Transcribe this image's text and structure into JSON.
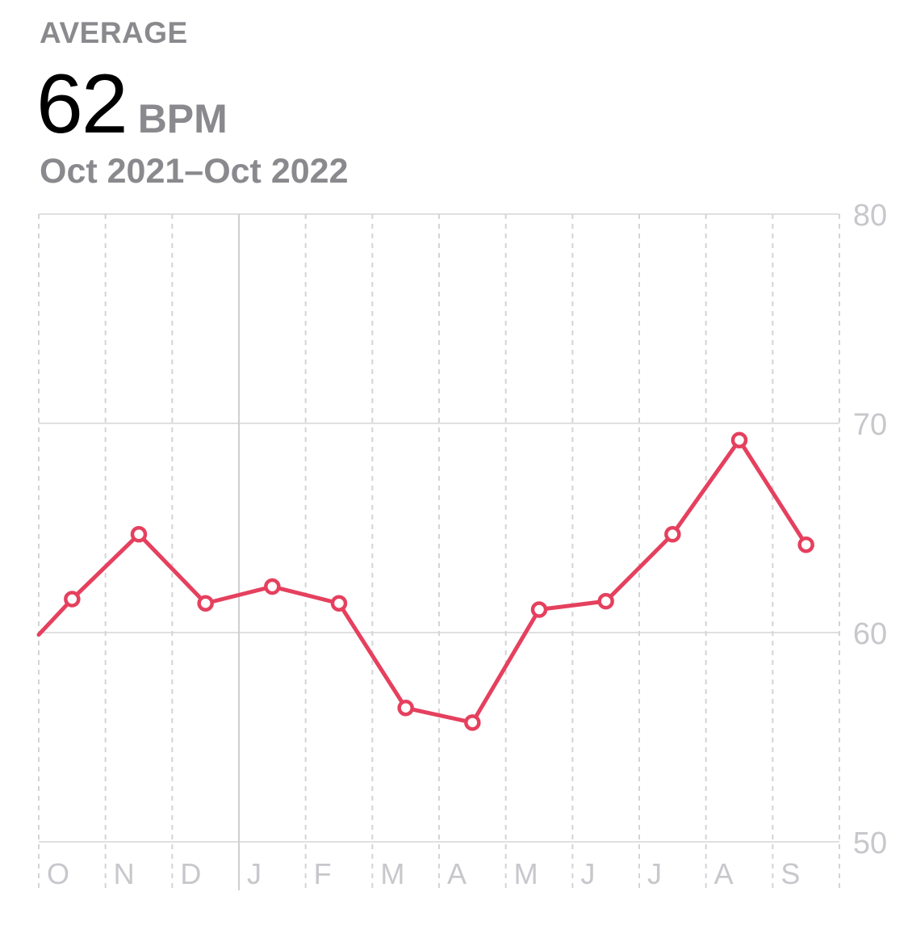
{
  "header": {
    "label": "AVERAGE",
    "value": "62",
    "unit": "BPM",
    "date_range": "Oct 2021–Oct 2022"
  },
  "colors": {
    "line": "#e5405e",
    "grid": "#e0e0e2",
    "axis_text": "#c7c7cc",
    "label_gray": "#8a8a8e"
  },
  "chart_data": {
    "type": "line",
    "title": "",
    "xlabel": "",
    "ylabel": "",
    "categories": [
      "O",
      "N",
      "D",
      "J",
      "F",
      "M",
      "A",
      "M",
      "J",
      "J",
      "A",
      "S"
    ],
    "y_ticks": [
      "50",
      "60",
      "70",
      "80"
    ],
    "ylim": [
      50,
      80
    ],
    "grid": true,
    "y_axis_position": "right",
    "series": [
      {
        "values": [
          61.6,
          64.7,
          61.4,
          62.2,
          61.4,
          56.4,
          55.7,
          61.1,
          61.5,
          64.7,
          69.2,
          64.2
        ],
        "start_value": 59.9
      }
    ]
  }
}
